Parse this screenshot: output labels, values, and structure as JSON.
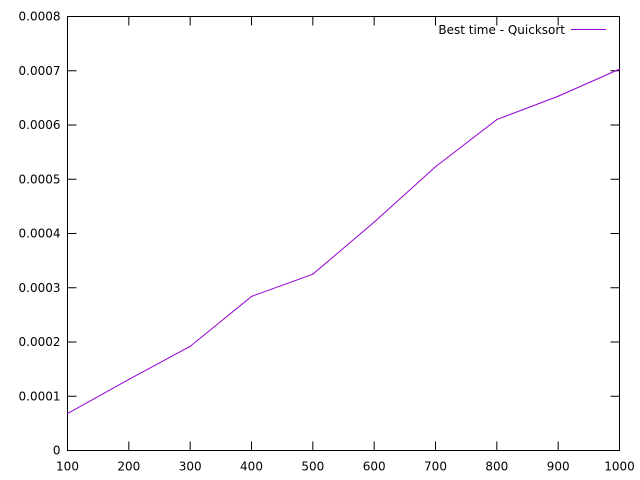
{
  "chart_data": {
    "type": "line",
    "title": "",
    "xlabel": "",
    "ylabel": "",
    "xlim": [
      100,
      1000
    ],
    "ylim": [
      0,
      0.0008
    ],
    "x_ticks": [
      "100",
      "200",
      "300",
      "400",
      "500",
      "600",
      "700",
      "800",
      "900",
      "1000"
    ],
    "y_ticks": [
      "0",
      "0.0001",
      "0.0002",
      "0.0003",
      "0.0004",
      "0.0005",
      "0.0006",
      "0.0007",
      "0.0008"
    ],
    "grid": false,
    "legend_position": "top-right",
    "series": [
      {
        "name": "Best time - Quicksort",
        "color": "#9400d3",
        "x": [
          100,
          200,
          300,
          400,
          500,
          600,
          700,
          800,
          900,
          1000
        ],
        "y": [
          6.8e-05,
          0.000131,
          0.000192,
          0.000284,
          0.000325,
          0.000421,
          0.000523,
          0.00061,
          0.000653,
          0.000703
        ]
      }
    ]
  }
}
